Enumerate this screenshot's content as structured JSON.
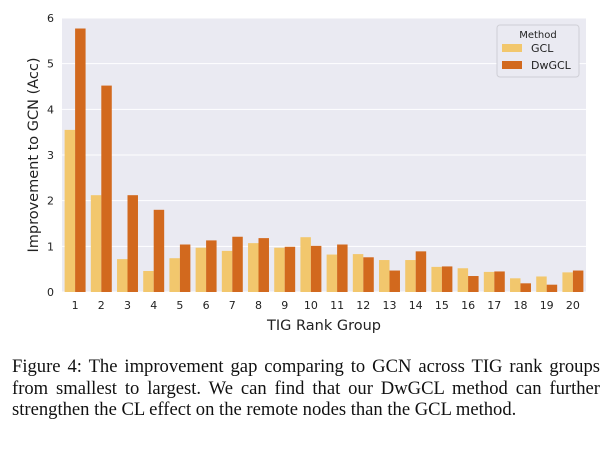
{
  "chart_data": {
    "type": "bar",
    "title": "",
    "xlabel": "TIG Rank Group",
    "ylabel": "Improvement to GCN (Acc)",
    "ylim": [
      0,
      6
    ],
    "yticks": [
      "0",
      "1",
      "2",
      "3",
      "4",
      "5",
      "6"
    ],
    "categories": [
      "1",
      "2",
      "3",
      "4",
      "5",
      "6",
      "7",
      "8",
      "9",
      "10",
      "11",
      "12",
      "13",
      "14",
      "15",
      "16",
      "17",
      "18",
      "19",
      "20"
    ],
    "legend": {
      "title": "Method",
      "placement": "top-right"
    },
    "grid": true,
    "series": [
      {
        "name": "GCL",
        "color": "#f2c76d",
        "values": [
          3.55,
          2.12,
          0.72,
          0.46,
          0.74,
          0.97,
          0.9,
          1.07,
          0.97,
          1.2,
          0.82,
          0.83,
          0.7,
          0.7,
          0.55,
          0.52,
          0.44,
          0.3,
          0.34,
          0.43
        ]
      },
      {
        "name": "DwGCL",
        "color": "#d2691e",
        "values": [
          5.77,
          4.52,
          2.12,
          1.8,
          1.04,
          1.13,
          1.21,
          1.18,
          0.99,
          1.01,
          1.04,
          0.76,
          0.47,
          0.89,
          0.56,
          0.35,
          0.45,
          0.19,
          0.16,
          0.47
        ]
      }
    ]
  },
  "caption": "Figure 4: The improvement gap comparing to GCN across TIG rank groups from smallest to largest. We can find that our DwGCL method can further strengthen the CL effect on the remote nodes than the GCL method."
}
